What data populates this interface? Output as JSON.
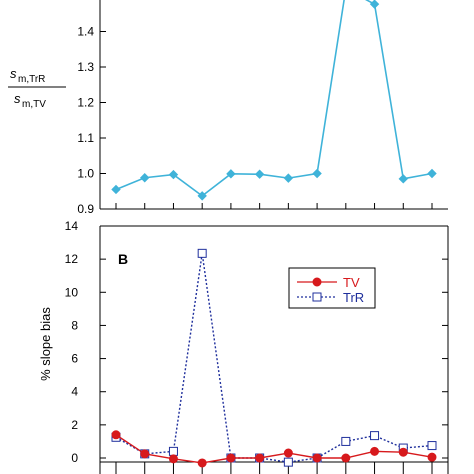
{
  "chart_data": [
    {
      "type": "line",
      "panel": "",
      "ylabel": {
        "numerator_main": "s",
        "numerator_sub": "m,TrR",
        "denominator_main": "s",
        "denominator_sub": "m,TV"
      },
      "xlabel": "",
      "x": [
        1,
        2,
        3,
        4,
        5,
        6,
        7,
        8,
        9,
        10,
        11,
        12
      ],
      "ylim": [
        0.9,
        1.5
      ],
      "yticks": [
        "0.9",
        "1.0",
        "1.1",
        "1.2",
        "1.3",
        "1.4"
      ],
      "ytick_values": [
        0.9,
        1.0,
        1.1,
        1.2,
        1.3,
        1.4
      ],
      "grid": false,
      "series": [
        {
          "name": "",
          "color": "#3fb3d9",
          "marker": "diamond",
          "values": [
            0.955,
            0.988,
            0.997,
            0.937,
            0.999,
            0.998,
            0.987,
            1.0,
            1.52,
            1.477,
            0.985,
            1.0
          ]
        }
      ]
    },
    {
      "type": "line",
      "panel": "B",
      "ylabel": "% slope bias",
      "xlabel": "",
      "x": [
        1,
        2,
        3,
        4,
        5,
        6,
        7,
        8,
        9,
        10,
        11,
        12
      ],
      "ylim": [
        0,
        14
      ],
      "yticks": [
        "0",
        "2",
        "4",
        "6",
        "8",
        "10",
        "12",
        "14"
      ],
      "ytick_values": [
        0,
        2,
        4,
        6,
        8,
        10,
        12,
        14
      ],
      "grid": false,
      "legend_position": "top-right",
      "series": [
        {
          "name": "TV",
          "color": "#d7191c",
          "marker": "filled-circle",
          "line": "solid",
          "values": [
            1.4,
            0.25,
            -0.05,
            -0.3,
            0.0,
            0.0,
            0.3,
            0.0,
            0.0,
            0.4,
            0.35,
            0.05
          ]
        },
        {
          "name": "TrR",
          "color": "#1f2f9c",
          "marker": "open-square",
          "line": "dotted",
          "values": [
            1.25,
            0.25,
            0.4,
            12.35,
            0.0,
            0.0,
            -0.25,
            0.0,
            1.0,
            1.35,
            0.6,
            0.75
          ]
        }
      ]
    }
  ]
}
